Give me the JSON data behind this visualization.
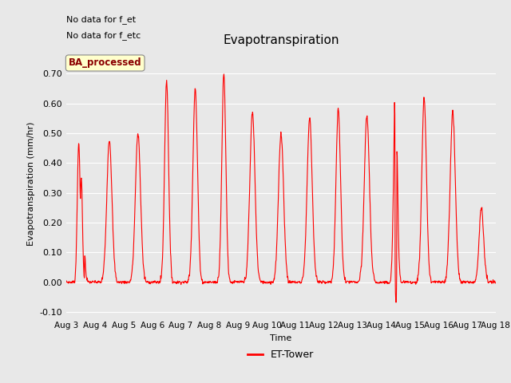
{
  "title": "Evapotranspiration",
  "ylabel": "Evapotranspiration (mm/hr)",
  "xlabel": "Time",
  "ylim": [
    -0.12,
    0.78
  ],
  "yticks": [
    -0.1,
    0.0,
    0.1,
    0.2,
    0.3,
    0.4,
    0.5,
    0.6,
    0.7
  ],
  "line_color": "red",
  "line_width": 0.8,
  "bg_color": "#e8e8e8",
  "plot_bg_color": "#e8e8e8",
  "legend_label": "ET-Tower",
  "legend_box_label": "BA_processed",
  "note1": "No data for f_et",
  "note2": "No data for f_etc",
  "x_tick_labels": [
    "Aug 3",
    "Aug 4",
    "Aug 5",
    "Aug 6",
    "Aug 7",
    "Aug 8",
    "Aug 9",
    "Aug 10",
    "Aug 11",
    "Aug 12",
    "Aug 13",
    "Aug 14",
    "Aug 15",
    "Aug 16",
    "Aug 17",
    "Aug 18"
  ],
  "num_days": 15,
  "day_peaks": [
    0.47,
    0.48,
    0.5,
    0.68,
    0.65,
    0.7,
    0.57,
    0.5,
    0.55,
    0.58,
    0.56,
    0.7,
    0.62,
    0.57,
    0.25
  ],
  "peak_widths": [
    0.08,
    0.09,
    0.09,
    0.07,
    0.08,
    0.07,
    0.09,
    0.09,
    0.09,
    0.08,
    0.09,
    0.06,
    0.08,
    0.09,
    0.08
  ],
  "dip_day": 11,
  "dip_value": -0.07
}
